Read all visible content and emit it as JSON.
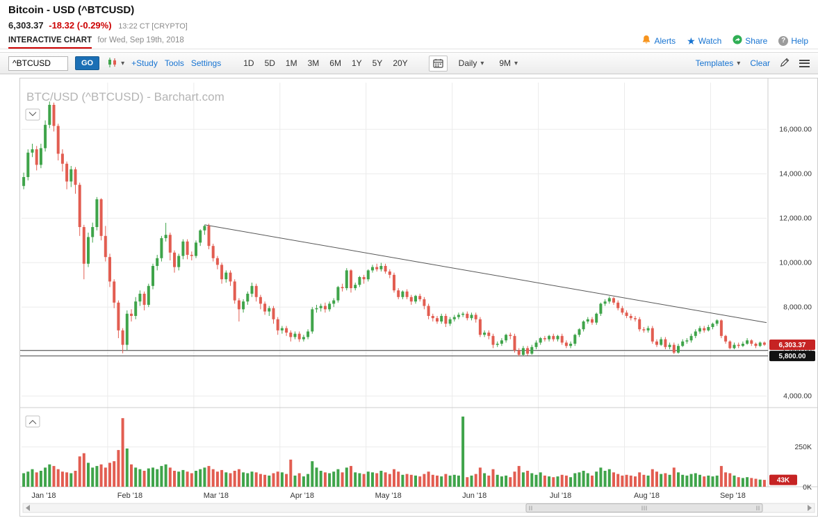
{
  "header": {
    "title": "Bitcoin - USD (^BTCUSD)",
    "last_price": "6,303.37",
    "change": "-18.32 (-0.29%)",
    "quote_time": "13:22 CT [CRYPTO]",
    "tab_label": "INTERACTIVE CHART",
    "tab_suffix": "for Wed, Sep 19th, 2018",
    "actions": [
      {
        "label": "Alerts",
        "icon": "alert-bell-icon",
        "color": "#f7941e"
      },
      {
        "label": "Watch",
        "icon": "watch-star-icon",
        "color": "#1673d1"
      },
      {
        "label": "Share",
        "icon": "share-icon",
        "color": "#2fae54"
      },
      {
        "label": "Help",
        "icon": "help-icon",
        "color": "#9b9b9b"
      }
    ]
  },
  "icons": {
    "caret_down": "▾",
    "star": "★",
    "help_glyph": "?"
  },
  "toolbar": {
    "symbol_value": "^BTCUSD",
    "go_label": "GO",
    "links": [
      "+Study",
      "Tools",
      "Settings"
    ],
    "ranges": [
      "1D",
      "5D",
      "1M",
      "3M",
      "6M",
      "1Y",
      "5Y",
      "20Y"
    ],
    "frequency": "Daily",
    "span": "9M",
    "templates_label": "Templates",
    "clear_label": "Clear"
  },
  "chart_data": {
    "type": "candlestick",
    "title": "BTC/USD (^BTCUSD) - Barchart.com",
    "symbol": "^BTCUSD",
    "frequency": "Daily",
    "months": [
      "Jan '18",
      "Feb '18",
      "Mar '18",
      "Apr '18",
      "May '18",
      "Jun '18",
      "Jul '18",
      "Aug '18",
      "Sep '18"
    ],
    "month_start_indices": [
      0,
      20,
      40,
      60,
      80,
      100,
      120,
      140,
      160
    ],
    "y_ticks": [
      16000,
      14000,
      12000,
      10000,
      8000,
      6000,
      4000
    ],
    "value_range": [
      3600,
      18100
    ],
    "support_lines": [
      6050,
      5800
    ],
    "trendline": {
      "from_index": 42,
      "from_value": 11700,
      "to_value": 7300
    },
    "last_price": 6303.37,
    "last_volume_k": 43,
    "price_badge_label": "6,303.37",
    "support_badge_label": "5,800.00",
    "volume_badge_label": "43K",
    "volume_ticks": [
      "250K",
      "0K"
    ],
    "volume_tick_values": [
      250,
      0
    ],
    "volume_scale_max": 470,
    "colors": {
      "up": "#3fa44a",
      "down": "#e25d51"
    },
    "ohlc": [
      [
        13450,
        14050,
        13300,
        13850
      ],
      [
        13850,
        15100,
        13700,
        14950
      ],
      [
        14950,
        15350,
        14750,
        15100
      ],
      [
        15100,
        15250,
        14150,
        14400
      ],
      [
        14400,
        15350,
        14250,
        15150
      ],
      [
        15150,
        16400,
        15000,
        16200
      ],
      [
        16200,
        17250,
        16050,
        17100
      ],
      [
        17100,
        17200,
        15900,
        16150
      ],
      [
        16150,
        16250,
        14600,
        14900
      ],
      [
        14900,
        15100,
        14100,
        14450
      ],
      [
        14450,
        14550,
        13300,
        13650
      ],
      [
        13650,
        14350,
        13400,
        14200
      ],
      [
        14200,
        14300,
        13100,
        13500
      ],
      [
        13500,
        13600,
        11200,
        11600
      ],
      [
        11600,
        11700,
        9250,
        9950
      ],
      [
        9950,
        11350,
        9800,
        11150
      ],
      [
        11150,
        11800,
        10900,
        11600
      ],
      [
        11600,
        12950,
        11450,
        12850
      ],
      [
        12850,
        12900,
        11000,
        11200
      ],
      [
        11200,
        11650,
        10050,
        10250
      ],
      [
        10250,
        10400,
        8900,
        9150
      ],
      [
        9150,
        9250,
        7950,
        8200
      ],
      [
        8200,
        8300,
        6600,
        6950
      ],
      [
        6950,
        7050,
        5920,
        6300
      ],
      [
        6300,
        7850,
        6050,
        7700
      ],
      [
        7700,
        7900,
        7350,
        7600
      ],
      [
        7600,
        8450,
        7450,
        8250
      ],
      [
        8250,
        8750,
        8050,
        8600
      ],
      [
        8600,
        8700,
        7850,
        8100
      ],
      [
        8100,
        9050,
        8000,
        8950
      ],
      [
        8950,
        9950,
        8800,
        9850
      ],
      [
        9850,
        10350,
        9650,
        10200
      ],
      [
        10200,
        11200,
        10050,
        11100
      ],
      [
        11100,
        11790,
        10950,
        11250
      ],
      [
        11250,
        11350,
        10100,
        10450
      ],
      [
        10450,
        10550,
        9550,
        9800
      ],
      [
        9800,
        10400,
        9650,
        10300
      ],
      [
        10300,
        11050,
        10150,
        10950
      ],
      [
        10950,
        11050,
        10150,
        10350
      ],
      [
        10350,
        10500,
        10100,
        10300
      ],
      [
        10300,
        11000,
        10200,
        10900
      ],
      [
        10900,
        11500,
        10750,
        11450
      ],
      [
        11450,
        11700,
        11250,
        11650
      ],
      [
        11650,
        11750,
        10600,
        10750
      ],
      [
        10750,
        10850,
        10050,
        10200
      ],
      [
        10200,
        10300,
        9700,
        9900
      ],
      [
        9900,
        10000,
        9050,
        9250
      ],
      [
        9250,
        9650,
        9100,
        9550
      ],
      [
        9550,
        9650,
        8950,
        9150
      ],
      [
        9150,
        9250,
        8150,
        8300
      ],
      [
        8300,
        8400,
        7350,
        7900
      ],
      [
        7900,
        8350,
        7750,
        8250
      ],
      [
        8250,
        8700,
        8100,
        8600
      ],
      [
        8600,
        9100,
        8450,
        8950
      ],
      [
        8950,
        9050,
        8250,
        8450
      ],
      [
        8450,
        8550,
        7900,
        8150
      ],
      [
        8150,
        8250,
        7650,
        7800
      ],
      [
        7800,
        8050,
        7600,
        7950
      ],
      [
        7950,
        8050,
        7250,
        7450
      ],
      [
        7450,
        7550,
        6750,
        6950
      ],
      [
        6950,
        7150,
        6800,
        7050
      ],
      [
        7050,
        7150,
        6700,
        6850
      ],
      [
        6850,
        6950,
        6450,
        6650
      ],
      [
        6650,
        6900,
        6550,
        6800
      ],
      [
        6800,
        6900,
        6430,
        6550
      ],
      [
        6550,
        6750,
        6450,
        6650
      ],
      [
        6650,
        7000,
        6550,
        6900
      ],
      [
        6900,
        8000,
        6800,
        7900
      ],
      [
        7900,
        8100,
        7750,
        7950
      ],
      [
        7950,
        8150,
        7800,
        8050
      ],
      [
        8050,
        8200,
        7750,
        7900
      ],
      [
        7900,
        8250,
        7800,
        8150
      ],
      [
        8150,
        8400,
        8000,
        8300
      ],
      [
        8300,
        8950,
        8200,
        8900
      ],
      [
        8900,
        9050,
        8700,
        8850
      ],
      [
        8850,
        9750,
        8750,
        9650
      ],
      [
        9650,
        9700,
        8650,
        8850
      ],
      [
        8850,
        9100,
        8750,
        9000
      ],
      [
        9000,
        9400,
        8900,
        9350
      ],
      [
        9350,
        9450,
        9050,
        9250
      ],
      [
        9250,
        9700,
        9150,
        9650
      ],
      [
        9650,
        9900,
        9550,
        9800
      ],
      [
        9800,
        9950,
        9600,
        9700
      ],
      [
        9700,
        9990,
        9600,
        9850
      ],
      [
        9850,
        9950,
        9500,
        9600
      ],
      [
        9600,
        9700,
        9300,
        9450
      ],
      [
        9450,
        9550,
        8650,
        8750
      ],
      [
        8750,
        8850,
        8350,
        8450
      ],
      [
        8450,
        8750,
        8350,
        8700
      ],
      [
        8700,
        8800,
        8350,
        8450
      ],
      [
        8450,
        8550,
        8100,
        8250
      ],
      [
        8250,
        8550,
        8150,
        8500
      ],
      [
        8500,
        8600,
        8250,
        8350
      ],
      [
        8350,
        8450,
        7900,
        8050
      ],
      [
        8050,
        8150,
        7450,
        7600
      ],
      [
        7600,
        7700,
        7350,
        7500
      ],
      [
        7500,
        7600,
        7250,
        7350
      ],
      [
        7350,
        7700,
        7250,
        7600
      ],
      [
        7600,
        7700,
        7100,
        7250
      ],
      [
        7250,
        7550,
        7150,
        7450
      ],
      [
        7450,
        7650,
        7350,
        7550
      ],
      [
        7550,
        7750,
        7450,
        7650
      ],
      [
        7650,
        7780,
        7550,
        7700
      ],
      [
        7700,
        7800,
        7400,
        7500
      ],
      [
        7500,
        7750,
        7400,
        7650
      ],
      [
        7650,
        7750,
        7300,
        7450
      ],
      [
        7450,
        7550,
        6650,
        6750
      ],
      [
        6750,
        6950,
        6650,
        6850
      ],
      [
        6850,
        6950,
        6550,
        6700
      ],
      [
        6700,
        6800,
        6150,
        6300
      ],
      [
        6300,
        6450,
        6200,
        6350
      ],
      [
        6350,
        6600,
        6250,
        6500
      ],
      [
        6500,
        6800,
        6400,
        6750
      ],
      [
        6750,
        6850,
        6550,
        6700
      ],
      [
        6700,
        6800,
        5950,
        6050
      ],
      [
        6050,
        6150,
        5780,
        5850
      ],
      [
        5850,
        6250,
        5800,
        6150
      ],
      [
        6150,
        6250,
        5820,
        5900
      ],
      [
        5900,
        6300,
        5850,
        6200
      ],
      [
        6200,
        6500,
        6100,
        6400
      ],
      [
        6400,
        6650,
        6300,
        6600
      ],
      [
        6600,
        6700,
        6450,
        6550
      ],
      [
        6550,
        6750,
        6450,
        6700
      ],
      [
        6700,
        6800,
        6450,
        6550
      ],
      [
        6550,
        6750,
        6450,
        6700
      ],
      [
        6700,
        6800,
        6300,
        6400
      ],
      [
        6400,
        6500,
        6150,
        6250
      ],
      [
        6250,
        6450,
        6150,
        6350
      ],
      [
        6350,
        6800,
        6250,
        6750
      ],
      [
        6750,
        7050,
        6650,
        7000
      ],
      [
        7000,
        7400,
        6900,
        7350
      ],
      [
        7350,
        7550,
        7250,
        7450
      ],
      [
        7450,
        7550,
        7200,
        7300
      ],
      [
        7300,
        7750,
        7200,
        7700
      ],
      [
        7700,
        8200,
        7600,
        8150
      ],
      [
        8150,
        8350,
        8050,
        8250
      ],
      [
        8250,
        8480,
        8150,
        8400
      ],
      [
        8400,
        8450,
        8100,
        8200
      ],
      [
        8200,
        8300,
        7850,
        7950
      ],
      [
        7950,
        8050,
        7650,
        7750
      ],
      [
        7750,
        7850,
        7500,
        7600
      ],
      [
        7600,
        7700,
        7400,
        7500
      ],
      [
        7500,
        7600,
        7350,
        7450
      ],
      [
        7450,
        7550,
        6900,
        7000
      ],
      [
        7000,
        7100,
        6850,
        6950
      ],
      [
        6950,
        7150,
        6850,
        7050
      ],
      [
        7050,
        7150,
        6350,
        6450
      ],
      [
        6450,
        6550,
        6200,
        6300
      ],
      [
        6300,
        6650,
        6250,
        6550
      ],
      [
        6550,
        6650,
        6100,
        6200
      ],
      [
        6200,
        6400,
        6100,
        6300
      ],
      [
        6300,
        6400,
        5880,
        5950
      ],
      [
        5950,
        6350,
        5900,
        6250
      ],
      [
        6250,
        6550,
        6200,
        6450
      ],
      [
        6450,
        6600,
        6350,
        6500
      ],
      [
        6500,
        6800,
        6400,
        6700
      ],
      [
        6700,
        7000,
        6600,
        6900
      ],
      [
        6900,
        7150,
        6800,
        7050
      ],
      [
        7050,
        7150,
        6850,
        6950
      ],
      [
        6950,
        7200,
        6900,
        7100
      ],
      [
        7100,
        7300,
        7000,
        7250
      ],
      [
        7250,
        7450,
        7150,
        7400
      ],
      [
        7400,
        7450,
        6600,
        6700
      ],
      [
        6700,
        6750,
        6350,
        6450
      ],
      [
        6450,
        6500,
        6100,
        6150
      ],
      [
        6150,
        6400,
        6100,
        6300
      ],
      [
        6300,
        6400,
        6150,
        6250
      ],
      [
        6250,
        6450,
        6200,
        6350
      ],
      [
        6350,
        6600,
        6300,
        6500
      ],
      [
        6500,
        6550,
        6250,
        6350
      ],
      [
        6350,
        6400,
        6150,
        6250
      ],
      [
        6250,
        6450,
        6200,
        6400
      ],
      [
        6400,
        6450,
        6250,
        6303
      ]
    ],
    "volume_k": [
      85,
      95,
      110,
      90,
      100,
      120,
      140,
      130,
      110,
      95,
      90,
      85,
      100,
      190,
      210,
      150,
      120,
      130,
      140,
      120,
      150,
      160,
      230,
      430,
      240,
      140,
      120,
      110,
      100,
      115,
      120,
      110,
      130,
      140,
      120,
      100,
      95,
      105,
      95,
      85,
      100,
      110,
      120,
      130,
      110,
      95,
      105,
      90,
      85,
      100,
      110,
      90,
      85,
      95,
      90,
      80,
      75,
      70,
      85,
      95,
      90,
      80,
      170,
      70,
      85,
      65,
      80,
      160,
      120,
      100,
      90,
      85,
      95,
      110,
      90,
      120,
      130,
      90,
      85,
      80,
      95,
      90,
      85,
      100,
      90,
      80,
      110,
      95,
      75,
      80,
      75,
      70,
      65,
      80,
      95,
      75,
      70,
      65,
      80,
      70,
      75,
      70,
      440,
      60,
      70,
      80,
      120,
      85,
      70,
      110,
      75,
      65,
      70,
      60,
      95,
      130,
      90,
      100,
      85,
      75,
      90,
      70,
      65,
      60,
      65,
      75,
      70,
      60,
      85,
      90,
      100,
      85,
      70,
      95,
      120,
      100,
      110,
      90,
      80,
      70,
      75,
      70,
      65,
      90,
      75,
      70,
      110,
      95,
      80,
      85,
      75,
      120,
      90,
      75,
      70,
      80,
      85,
      75,
      65,
      70,
      65,
      70,
      130,
      90,
      85,
      70,
      60,
      55,
      60,
      55,
      50,
      45,
      43
    ]
  }
}
